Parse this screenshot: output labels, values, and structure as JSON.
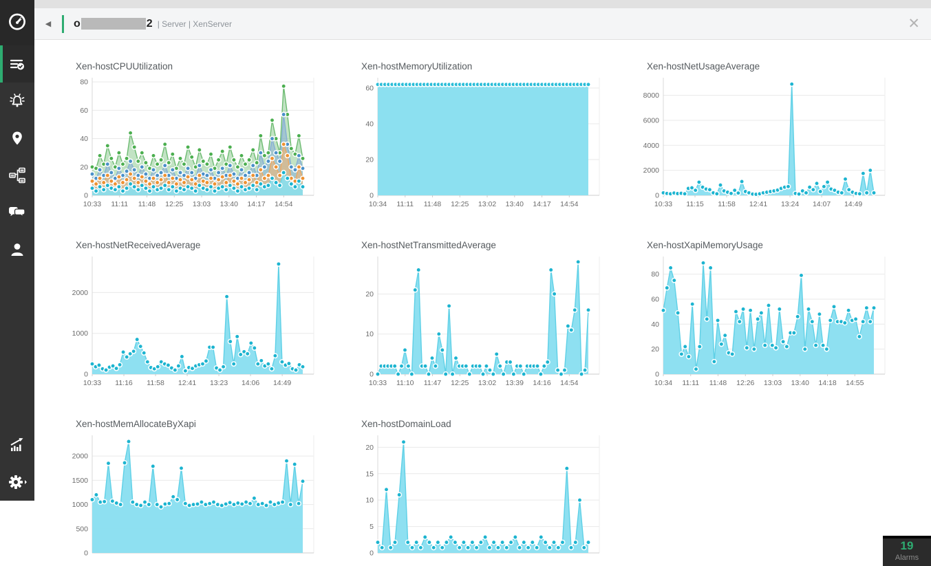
{
  "accent_color": "#2eac71",
  "header": {
    "back_icon": "left-triangle",
    "title_prefix": "o",
    "title_suffix": "2",
    "breadcrumb": "| Server | XenServer",
    "close_icon": "x"
  },
  "sidebar": {
    "logo_icon": "gauge-icon",
    "items": [
      {
        "name": "inventory",
        "icon": "list-check-icon",
        "active": true
      },
      {
        "name": "alarms",
        "icon": "bell-alert-icon",
        "active": false
      },
      {
        "name": "maps",
        "icon": "location-pin-icon",
        "active": false
      },
      {
        "name": "topology",
        "icon": "network-topology-icon",
        "active": false
      },
      {
        "name": "chat",
        "icon": "chat-bubbles-icon",
        "active": false
      },
      {
        "name": "user",
        "icon": "person-icon",
        "active": false
      },
      {
        "name": "reports",
        "icon": "chart-growth-icon",
        "active": false
      },
      {
        "name": "settings",
        "icon": "gear-icon",
        "active": false
      }
    ]
  },
  "alarms_badge": {
    "count": "19",
    "label": "Alarms",
    "count_color": "#2eac71"
  },
  "chart_data": [
    {
      "type": "area",
      "title": "Xen-hostCPUUtilization",
      "x_ticks": [
        "10:33",
        "11:11",
        "11:48",
        "12:25",
        "13:03",
        "13:40",
        "14:17",
        "14:54"
      ],
      "y_ticks": [
        0,
        20,
        40,
        60,
        80
      ],
      "ymax": 82,
      "series": [
        {
          "color_name": "green",
          "marker": "#4caf50",
          "line": "#6dbb72",
          "fill": "rgba(120,194,124,0.45)",
          "values": [
            20,
            19,
            28,
            22,
            35,
            26,
            20,
            30,
            22,
            26,
            44,
            34,
            24,
            30,
            23,
            19,
            28,
            22,
            25,
            36,
            23,
            29,
            19,
            26,
            22,
            34,
            27,
            20,
            32,
            24,
            22,
            29,
            19,
            25,
            31,
            22,
            34,
            25,
            20,
            28,
            22,
            25,
            32,
            23,
            42,
            28,
            30,
            53,
            40,
            30,
            77,
            57,
            33,
            29,
            42,
            26
          ]
        },
        {
          "color_name": "blue",
          "marker": "#4a90c9",
          "line": "#86aed6",
          "fill": "rgba(130,170,215,0.5)",
          "values": [
            15,
            12,
            18,
            14,
            22,
            16,
            12,
            19,
            14,
            17,
            24,
            18,
            14,
            20,
            15,
            12,
            18,
            14,
            16,
            21,
            14,
            18,
            12,
            16,
            14,
            19,
            16,
            12,
            21,
            15,
            14,
            18,
            12,
            16,
            19,
            14,
            21,
            15,
            12,
            18,
            14,
            16,
            21,
            14,
            30,
            20,
            24,
            40,
            30,
            24,
            57,
            36,
            20,
            18,
            28,
            19
          ]
        },
        {
          "color_name": "orange",
          "marker": "#ee9233",
          "line": "#f0a860",
          "fill": "rgba(245,180,112,0.55)",
          "values": [
            10,
            8,
            12,
            9,
            14,
            10,
            8,
            13,
            9,
            11,
            15,
            12,
            9,
            13,
            10,
            8,
            12,
            9,
            11,
            14,
            9,
            12,
            8,
            11,
            9,
            13,
            11,
            8,
            14,
            10,
            9,
            12,
            8,
            11,
            13,
            9,
            14,
            10,
            8,
            12,
            9,
            11,
            14,
            9,
            18,
            12,
            14,
            26,
            20,
            14,
            36,
            28,
            12,
            10,
            20,
            12
          ]
        },
        {
          "color_name": "cyan",
          "marker": "#1cb4d0",
          "line": "#66d4e8",
          "fill": "rgba(135,223,240,0.9)",
          "values": [
            5,
            3,
            6,
            4,
            7,
            5,
            4,
            6,
            3,
            5,
            8,
            6,
            4,
            7,
            5,
            3,
            6,
            4,
            5,
            7,
            4,
            6,
            3,
            5,
            4,
            6,
            5,
            3,
            7,
            5,
            4,
            6,
            3,
            5,
            6,
            4,
            7,
            5,
            3,
            6,
            4,
            5,
            7,
            4,
            8,
            6,
            7,
            12,
            9,
            7,
            16,
            12,
            8,
            6,
            10,
            6
          ]
        }
      ]
    },
    {
      "type": "area",
      "title": "Xen-hostMemoryUtilization",
      "x_ticks": [
        "10:34",
        "11:11",
        "11:48",
        "12:25",
        "13:02",
        "13:40",
        "14:17",
        "14:54"
      ],
      "y_ticks": [
        0,
        20,
        40,
        60
      ],
      "ymax": 65,
      "series": [
        {
          "color_name": "cyan",
          "marker": "#29bdd8",
          "line": "#7adcee",
          "fill": "#8ce0f0",
          "values": [
            62,
            62,
            62,
            62,
            62,
            62,
            62,
            62,
            62,
            62,
            62,
            62,
            62,
            62,
            62,
            62,
            62,
            62,
            62,
            62,
            62,
            62,
            62,
            62,
            62,
            62,
            62,
            62,
            62,
            62,
            62,
            62,
            62,
            62,
            62,
            62,
            62,
            62,
            62,
            62,
            62,
            62,
            62,
            62,
            62,
            62,
            62,
            62,
            62,
            62,
            62,
            62,
            62,
            62,
            62,
            62,
            62,
            62,
            62,
            62
          ]
        }
      ]
    },
    {
      "type": "area",
      "title": "Xen-hostNetUsageAverage",
      "x_ticks": [
        "10:33",
        "11:15",
        "11:58",
        "12:41",
        "13:24",
        "14:07",
        "14:49"
      ],
      "y_ticks": [
        0,
        2000,
        4000,
        6000,
        8000
      ],
      "ymax": 9300,
      "series": [
        {
          "color_name": "cyan",
          "marker": "#1cb4d0",
          "line": "#5ed0e6",
          "fill": "rgba(136,222,240,0.95)",
          "values": [
            200,
            150,
            120,
            180,
            140,
            160,
            120,
            550,
            600,
            400,
            1050,
            650,
            500,
            450,
            200,
            120,
            820,
            350,
            250,
            150,
            400,
            180,
            1100,
            300,
            200,
            100,
            80,
            120,
            200,
            250,
            300,
            350,
            420,
            550,
            650,
            700,
            8900,
            150,
            100,
            350,
            200,
            650,
            450,
            950,
            300,
            700,
            1050,
            500,
            400,
            250,
            200,
            1300,
            450,
            250,
            150,
            120,
            1750,
            200,
            2000,
            200
          ]
        }
      ]
    },
    {
      "type": "area",
      "title": "Xen-hostNetReceivedAverage",
      "x_ticks": [
        "10:33",
        "11:16",
        "11:58",
        "12:41",
        "13:23",
        "14:06",
        "14:49"
      ],
      "y_ticks": [
        0,
        1000,
        2000
      ],
      "ymax": 2850,
      "series": [
        {
          "color_name": "cyan",
          "marker": "#1cb4d0",
          "line": "#5ed0e6",
          "fill": "rgba(136,222,240,0.95)",
          "values": [
            250,
            180,
            220,
            130,
            100,
            170,
            200,
            140,
            230,
            540,
            420,
            500,
            560,
            850,
            680,
            520,
            300,
            160,
            130,
            180,
            300,
            250,
            220,
            150,
            100,
            200,
            430,
            80,
            160,
            140,
            200,
            230,
            250,
            320,
            660,
            660,
            150,
            100,
            180,
            1900,
            800,
            250,
            920,
            480,
            550,
            500,
            760,
            640,
            250,
            330,
            200,
            250,
            130,
            450,
            2700,
            300,
            220,
            260,
            130,
            100,
            230,
            180
          ]
        }
      ]
    },
    {
      "type": "area",
      "title": "Xen-hostNetTransmittedAverage",
      "x_ticks": [
        "10:33",
        "11:10",
        "11:47",
        "12:25",
        "13:02",
        "13:39",
        "14:16",
        "14:54"
      ],
      "y_ticks": [
        0,
        10,
        20
      ],
      "ymax": 29,
      "series": [
        {
          "color_name": "cyan",
          "marker": "#1cb4d0",
          "line": "#5ed0e6",
          "fill": "rgba(136,222,240,0.95)",
          "values": [
            0,
            2,
            2,
            2,
            2,
            2,
            0,
            2,
            6,
            2,
            0,
            21,
            26,
            2,
            2,
            0,
            4,
            2,
            10,
            6,
            0,
            17,
            0,
            4,
            2,
            2,
            2,
            0,
            2,
            2,
            2,
            0,
            2,
            1,
            0,
            5,
            2,
            0,
            3,
            3,
            0,
            2,
            2,
            0,
            2,
            2,
            2,
            2,
            0,
            2,
            3,
            26,
            20,
            1,
            0,
            1,
            12,
            11,
            16,
            28,
            0,
            1,
            16
          ]
        }
      ]
    },
    {
      "type": "area",
      "title": "Xen-hostXapiMemoryUsage",
      "x_ticks": [
        "10:34",
        "11:11",
        "11:48",
        "12:26",
        "13:03",
        "13:40",
        "14:18",
        "14:55"
      ],
      "y_ticks": [
        0,
        20,
        40,
        60,
        80
      ],
      "ymax": 93,
      "series": [
        {
          "color_name": "cyan",
          "marker": "#1cb4d0",
          "line": "#5ed0e6",
          "fill": "rgba(136,222,240,0.95)",
          "values": [
            51,
            69,
            85,
            75,
            49,
            16,
            22,
            14,
            56,
            4,
            22,
            89,
            44,
            85,
            10,
            43,
            24,
            31,
            17,
            16,
            50,
            42,
            52,
            21,
            51,
            20,
            44,
            49,
            23,
            55,
            23,
            21,
            52,
            26,
            22,
            33,
            33,
            46,
            79,
            20,
            52,
            42,
            23,
            48,
            23,
            20,
            43,
            54,
            42,
            42,
            41,
            51,
            43,
            44,
            30,
            42,
            53,
            42,
            53
          ]
        }
      ]
    },
    {
      "type": "area",
      "title": "Xen-hostMemAllocateByXapi",
      "x_ticks": [],
      "y_ticks": [
        0,
        500,
        1000,
        1500,
        2000
      ],
      "ymax": 2400,
      "series": [
        {
          "color_name": "cyan",
          "marker": "#1cb4d0",
          "line": "#5ed0e6",
          "fill": "rgba(136,222,240,0.95)",
          "values": [
            1100,
            1200,
            1050,
            1060,
            1850,
            1070,
            1030,
            1000,
            1860,
            2300,
            1050,
            1000,
            980,
            1050,
            1000,
            1790,
            1000,
            950,
            1010,
            1020,
            1160,
            1100,
            1750,
            1020,
            980,
            1000,
            1010,
            1050,
            1000,
            1020,
            1050,
            1000,
            980,
            1010,
            1040,
            1000,
            1030,
            1010,
            1050,
            1020,
            1130,
            1000,
            1020,
            980,
            1050,
            1000,
            1030,
            1050,
            1900,
            1000,
            1830,
            1020,
            1480
          ]
        }
      ]
    },
    {
      "type": "area",
      "title": "Xen-hostDomainLoad",
      "x_ticks": [],
      "y_ticks": [
        0,
        5,
        10,
        15,
        20
      ],
      "ymax": 22,
      "series": [
        {
          "color_name": "cyan",
          "marker": "#1cb4d0",
          "line": "#5ed0e6",
          "fill": "rgba(136,222,240,0.95)",
          "values": [
            2,
            1,
            12,
            1,
            2,
            11,
            21,
            2,
            1,
            2,
            1,
            3,
            2,
            1,
            2,
            1,
            2,
            3,
            2,
            1,
            2,
            1,
            2,
            1,
            2,
            3,
            1,
            2,
            1,
            2,
            1,
            2,
            3,
            1,
            2,
            1,
            2,
            1,
            3,
            2,
            1,
            2,
            1,
            2,
            16,
            1,
            2,
            10,
            1,
            2
          ]
        }
      ]
    }
  ]
}
